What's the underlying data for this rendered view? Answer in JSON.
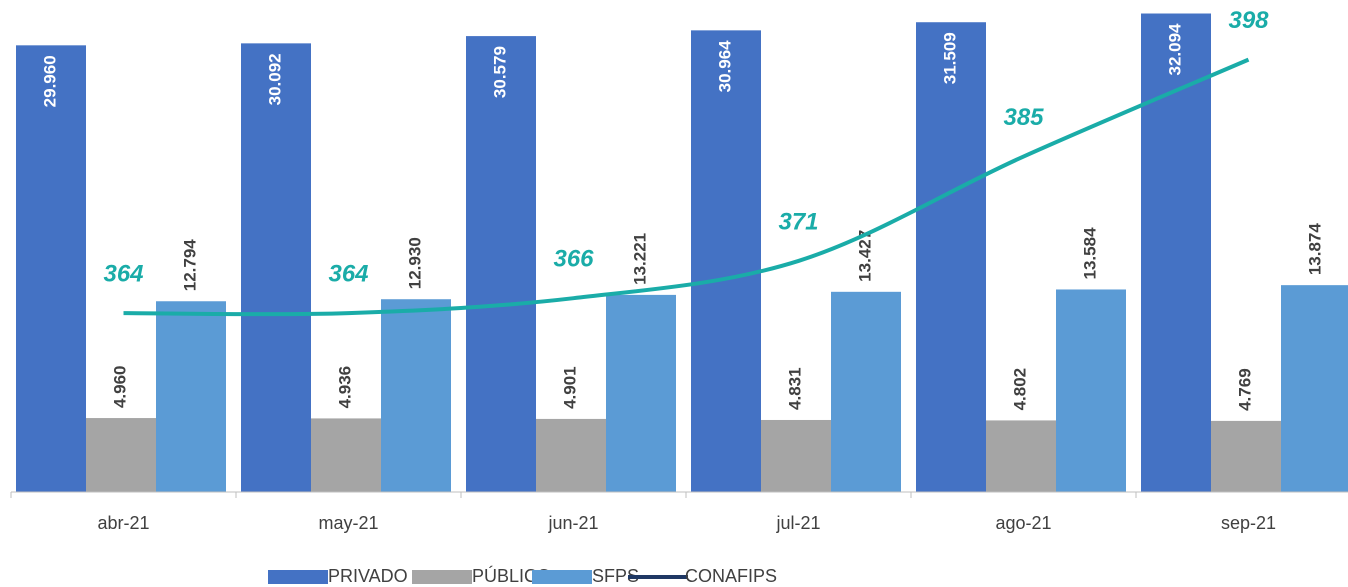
{
  "chart_data": {
    "type": "bar",
    "categories": [
      "abr-21",
      "may-21",
      "jun-21",
      "jul-21",
      "ago-21",
      "sep-21"
    ],
    "ylim": [
      0,
      33000
    ],
    "y2lim": [
      340,
      406
    ],
    "series": [
      {
        "name": "PRIVADO",
        "color": "#4472c4",
        "values": [
          29960,
          30092,
          30579,
          30964,
          31509,
          32094
        ],
        "value_labels": [
          "29.960",
          "30.092",
          "30.579",
          "30.964",
          "31.509",
          "32.094"
        ]
      },
      {
        "name": "PÚBLICO",
        "color": "#a5a5a5",
        "values": [
          4960,
          4936,
          4901,
          4831,
          4802,
          4769
        ],
        "value_labels": [
          "4.960",
          "4.936",
          "4.901",
          "4.831",
          "4.802",
          "4.769"
        ]
      },
      {
        "name": "SFPS",
        "color": "#5b9bd5",
        "values": [
          12794,
          12930,
          13221,
          13427,
          13584,
          13874
        ],
        "value_labels": [
          "12.794",
          "12.930",
          "13.221",
          "13.427",
          "13.584",
          "13.874"
        ]
      },
      {
        "name": "CONAFIPS",
        "type": "line",
        "axis": "y2",
        "color": "#1aaca8",
        "legend_color": "#1f3864",
        "values": [
          364,
          364,
          366,
          371,
          385,
          398
        ]
      }
    ]
  }
}
